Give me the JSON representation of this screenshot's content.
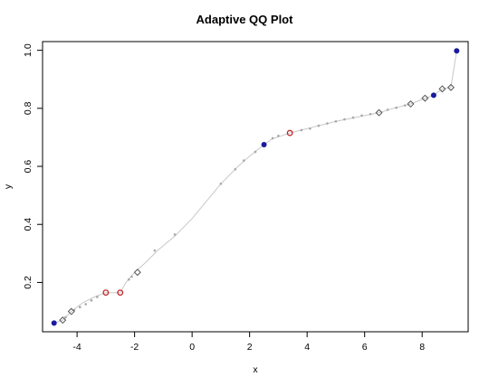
{
  "chart_data": {
    "type": "scatter",
    "title": "Adaptive QQ Plot",
    "xlabel": "x",
    "ylabel": "y",
    "xlim": [
      -5.2,
      9.6
    ],
    "ylim": [
      0.03,
      1.03
    ],
    "xticks": [
      -4,
      -2,
      0,
      2,
      4,
      6,
      8
    ],
    "yticks": [
      0.2,
      0.4,
      0.6,
      0.8,
      1.0
    ],
    "xtick_labels": [
      "-4",
      "-2",
      "0",
      "2",
      "4",
      "6",
      "8"
    ],
    "ytick_labels": [
      "0.2",
      "0.4",
      "0.6",
      "0.8",
      "1.0"
    ],
    "grid": false,
    "colors": {
      "line": "#c8c8c8",
      "small_points": "#a8a8a8",
      "filled_points": "#1a1aa0",
      "red_points": "#c0282c",
      "diamond_points": "#555555"
    },
    "series": [
      {
        "marker": "line",
        "x": [
          -4.8,
          -4.5,
          -4.2,
          -3.8,
          -3.4,
          -3.0,
          -2.5,
          -2.3,
          -2.0,
          -1.6,
          -1.2,
          -0.6,
          0.0,
          0.5,
          1.0,
          1.6,
          2.0,
          2.5,
          2.8,
          3.1,
          3.4,
          3.8,
          4.2,
          4.6,
          5.0,
          5.5,
          6.0,
          6.5,
          7.0,
          7.6,
          8.1,
          8.4,
          8.7,
          9.0,
          9.2
        ],
        "y": [
          0.06,
          0.07,
          0.1,
          0.13,
          0.15,
          0.165,
          0.165,
          0.2,
          0.235,
          0.27,
          0.31,
          0.36,
          0.42,
          0.48,
          0.54,
          0.6,
          0.635,
          0.675,
          0.695,
          0.705,
          0.715,
          0.725,
          0.735,
          0.745,
          0.755,
          0.765,
          0.775,
          0.785,
          0.8,
          0.815,
          0.835,
          0.845,
          0.867,
          0.872,
          0.998
        ]
      },
      {
        "marker": "small",
        "x": [
          -4.4,
          -4.1,
          -3.9,
          -3.7,
          -3.5,
          -3.3,
          -2.2,
          -2.1,
          -1.3,
          -0.6,
          1.0,
          1.5,
          1.8,
          2.2,
          2.8,
          3.0,
          3.8,
          4.1,
          4.4,
          4.7,
          5.0,
          5.3,
          5.6,
          5.9,
          6.2,
          6.8,
          7.1,
          7.4
        ],
        "y": [
          0.08,
          0.105,
          0.115,
          0.125,
          0.138,
          0.15,
          0.21,
          0.22,
          0.31,
          0.365,
          0.54,
          0.59,
          0.62,
          0.65,
          0.697,
          0.705,
          0.725,
          0.73,
          0.74,
          0.748,
          0.755,
          0.762,
          0.768,
          0.775,
          0.78,
          0.795,
          0.802,
          0.81
        ]
      },
      {
        "marker": "filled",
        "x": [
          -4.8,
          2.5,
          8.4,
          9.2
        ],
        "y": [
          0.06,
          0.675,
          0.845,
          0.998
        ]
      },
      {
        "marker": "red-open",
        "x": [
          -3.0,
          -2.5,
          3.4
        ],
        "y": [
          0.165,
          0.165,
          0.715
        ]
      },
      {
        "marker": "diamond",
        "x": [
          -4.5,
          -4.2,
          -1.9,
          6.5,
          7.6,
          8.1,
          8.7,
          9.0
        ],
        "y": [
          0.07,
          0.1,
          0.235,
          0.785,
          0.815,
          0.835,
          0.867,
          0.872
        ]
      }
    ]
  }
}
